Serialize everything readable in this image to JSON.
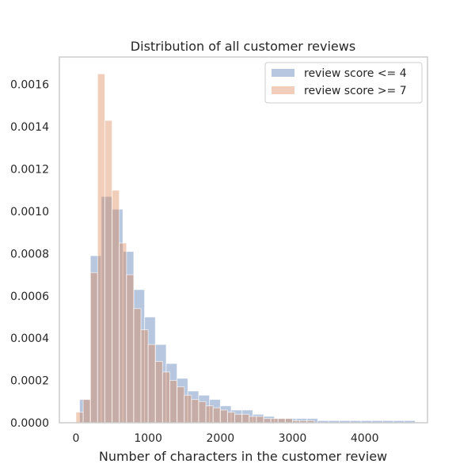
{
  "chart_data": {
    "type": "bar",
    "title": "Distribution of all customer reviews",
    "xlabel": "Number of characters in the customer review",
    "ylabel": "",
    "xlim": [
      -230,
      4870
    ],
    "ylim": [
      0,
      0.00173
    ],
    "xticks": [
      0,
      1000,
      2000,
      3000,
      4000
    ],
    "xtick_labels": [
      "0",
      "1000",
      "2000",
      "3000",
      "4000"
    ],
    "yticks": [
      0,
      0.0002,
      0.0004,
      0.0006,
      0.0008,
      0.001,
      0.0012,
      0.0014,
      0.0016
    ],
    "ytick_labels": [
      "0.0000",
      "0.0002",
      "0.0004",
      "0.0006",
      "0.0008",
      "0.0010",
      "0.0012",
      "0.0014",
      "0.0016"
    ],
    "grid": false,
    "legend_position": "top-right",
    "series": [
      {
        "name": "review score <= 4",
        "color": "#4c72b0",
        "alpha": 0.4,
        "bin_start": 50,
        "bin_width": 150,
        "values": [
          0.00011,
          0.00079,
          0.00107,
          0.00101,
          0.00081,
          0.00063,
          0.0005,
          0.00037,
          0.00028,
          0.00021,
          0.00015,
          0.00013,
          0.00011,
          8e-05,
          6e-05,
          6e-05,
          4e-05,
          3e-05,
          2e-05,
          2e-05,
          2e-05,
          2e-05,
          1e-05,
          1e-05,
          1e-05,
          1e-05,
          1e-05,
          1e-05,
          1e-05,
          1e-05,
          1e-05
        ]
      },
      {
        "name": "review score >= 7",
        "color": "#dd8452",
        "alpha": 0.4,
        "bin_start": 0,
        "bin_width": 100,
        "values": [
          5e-05,
          0.00011,
          0.00071,
          0.00165,
          0.00143,
          0.0011,
          0.00085,
          0.0007,
          0.00054,
          0.00044,
          0.00037,
          0.00029,
          0.00024,
          0.0002,
          0.00017,
          0.00013,
          0.00011,
          0.0001,
          8e-05,
          7e-05,
          6e-05,
          5e-05,
          4e-05,
          4e-05,
          3e-05,
          3e-05,
          2e-05,
          2e-05,
          2e-05,
          2e-05,
          1e-05,
          1e-05,
          1e-05
        ]
      }
    ]
  }
}
